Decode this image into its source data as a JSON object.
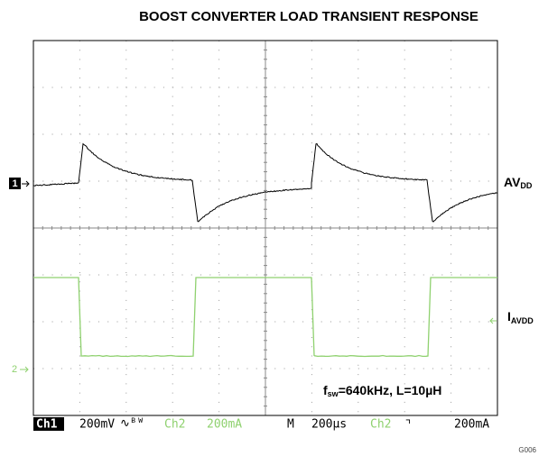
{
  "title": "BOOST CONVERTER LOAD TRANSIENT RESPONSE",
  "channel_markers": [
    "1",
    "2"
  ],
  "av_label": {
    "main": "AV",
    "sub": "DD"
  },
  "i_label": {
    "main": "I",
    "sub": "AVDD"
  },
  "annotation": {
    "main": "f",
    "sub": "sw",
    "rest": "=640kHz, L=10µH"
  },
  "status_bar": [
    "Ch1",
    "200mV",
    "∿ᴮᵂ",
    "Ch2",
    "200mA",
    "M",
    "200µs",
    "Ch2",
    "⌝",
    "200mA"
  ],
  "figure_id": "G006"
}
